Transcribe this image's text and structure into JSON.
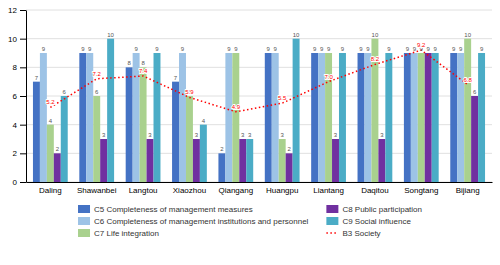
{
  "chart_data": {
    "type": "bar",
    "categories": [
      "Daling",
      "Shawanbei",
      "Langtou",
      "Xiaozhou",
      "Qiangang",
      "Huangpu",
      "Liantang",
      "Daqitou",
      "Songtang",
      "Bijiang"
    ],
    "series": [
      {
        "name": "C5 Completeness of management measures",
        "color": "#4472C4",
        "values": [
          7,
          9,
          8,
          7,
          2,
          9,
          9,
          9,
          9,
          9
        ]
      },
      {
        "name": "C6 Completeness of management institutions and personnel",
        "color": "#9DC3E6",
        "values": [
          9,
          9,
          9,
          9,
          9,
          9,
          9,
          9,
          9,
          9
        ]
      },
      {
        "name": "C7 Life integration",
        "color": "#A9D18E",
        "values": [
          4,
          6,
          8,
          6,
          9,
          3,
          9,
          10,
          9,
          10
        ]
      },
      {
        "name": "C8 Public participation",
        "color": "#7030A0",
        "values": [
          2,
          3,
          3,
          3,
          3,
          2,
          3,
          3,
          9,
          6
        ]
      },
      {
        "name": "C9 Social influence",
        "color": "#4BACC6",
        "values": [
          6,
          10,
          9,
          4,
          3,
          10,
          9,
          9,
          9,
          9
        ]
      },
      {
        "name": "B3 Society",
        "type": "line",
        "line_style": "dotted",
        "color": "#FF0000",
        "values": [
          5.2,
          7.2,
          7.4,
          5.9,
          4.9,
          5.5,
          7.0,
          8.2,
          9.2,
          6.8
        ],
        "value_labels": [
          "5.2",
          "7.2",
          "7.4",
          "5.9",
          "4.9",
          "5.5",
          "7.0",
          "8.2",
          "9.2",
          "6.8"
        ]
      }
    ],
    "ylim": [
      0,
      12
    ],
    "yticks": [
      0,
      2,
      4,
      6,
      8,
      10,
      12
    ],
    "grid": true,
    "data_labels": true,
    "legend": "bottom"
  }
}
